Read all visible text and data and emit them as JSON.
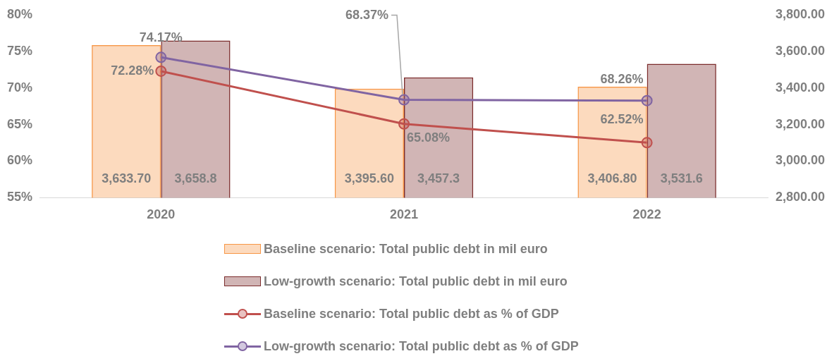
{
  "chart_data": {
    "type": "bar",
    "categories": [
      "2020",
      "2021",
      "2022"
    ],
    "series": [
      {
        "name": "Baseline scenario: Total public debt in mil euro",
        "axis": "y2",
        "color": "#f79646",
        "values": [
          3633.7,
          3395.6,
          3406.8
        ],
        "value_labels": [
          "3,633.70",
          "3,395.60",
          "3,406.80"
        ]
      },
      {
        "name": "Low-growth scenario: Total public debt in mil euro",
        "axis": "y2",
        "color": "#7b2c2c",
        "values": [
          3658.8,
          3457.3,
          3531.6
        ],
        "value_labels": [
          "3,658.8",
          "3,457.3",
          "3,531.6"
        ]
      },
      {
        "name": "Baseline scenario: Total public debt as % of GDP",
        "type": "line",
        "axis": "y",
        "color": "#c0504d",
        "values": [
          72.28,
          65.08,
          62.52
        ],
        "value_labels": [
          "72.28%",
          "65.08%",
          "62.52%"
        ]
      },
      {
        "name": "Low-growth scenario: Total public debt as % of GDP",
        "type": "line",
        "axis": "y",
        "color": "#8064a2",
        "values": [
          74.17,
          68.37,
          68.26
        ],
        "value_labels": [
          "74.17%",
          "68.37%",
          "68.26%"
        ]
      }
    ],
    "ylim": [
      55,
      80
    ],
    "yticks": [
      {
        "value": 55,
        "label": "55%"
      },
      {
        "value": 60,
        "label": "60%"
      },
      {
        "value": 65,
        "label": "65%"
      },
      {
        "value": 70,
        "label": "70%"
      },
      {
        "value": 75,
        "label": "75%"
      },
      {
        "value": 80,
        "label": "80%"
      }
    ],
    "y2lim": [
      2800,
      3800
    ],
    "y2ticks": [
      {
        "value": 2800,
        "label": "2,800.00"
      },
      {
        "value": 3000,
        "label": "3,000.00"
      },
      {
        "value": 3200,
        "label": "3,200.00"
      },
      {
        "value": 3400,
        "label": "3,400.00"
      },
      {
        "value": 3600,
        "label": "3,600.00"
      },
      {
        "value": 3800,
        "label": "3,800.00"
      }
    ],
    "grid": false,
    "legend": "bottom",
    "marker": "circle",
    "line_style": "solid"
  }
}
